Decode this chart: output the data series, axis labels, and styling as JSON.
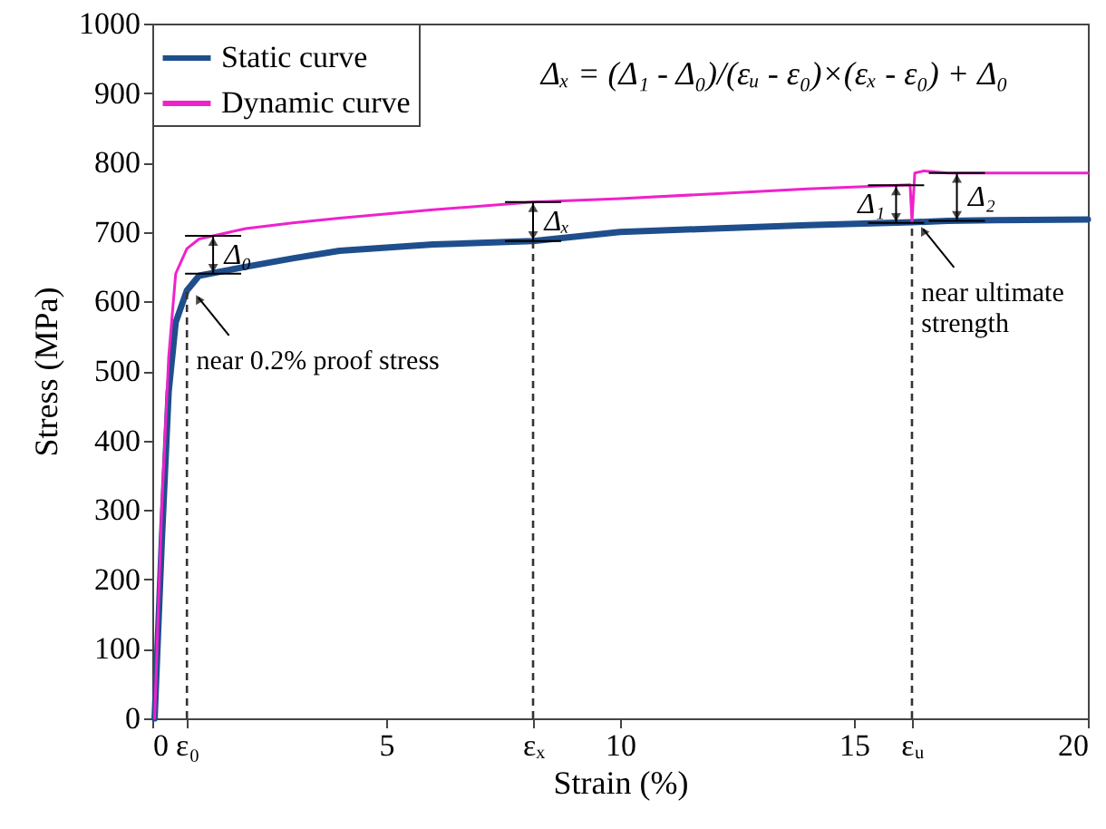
{
  "chart_data": {
    "type": "line",
    "xlabel": "Strain (%)",
    "ylabel": "Stress (MPa)",
    "xlim": [
      0,
      20
    ],
    "ylim": [
      0,
      1000
    ],
    "xticks": [
      0,
      {
        "value": 0.74,
        "label": "ε₀"
      },
      5,
      {
        "value": 8.14,
        "label": "εₓ"
      },
      10,
      15,
      {
        "value": 16.24,
        "label": "εᵤ"
      },
      20
    ],
    "yticks": [
      0,
      100,
      200,
      300,
      400,
      500,
      600,
      700,
      800,
      900,
      1000
    ],
    "legend": "top left",
    "series": [
      {
        "name": "Static curve",
        "color": "#1f4e8c",
        "x": [
          0.05,
          0.2,
          0.35,
          0.5,
          0.74,
          1,
          2,
          3,
          4,
          6,
          8.14,
          10,
          12,
          14,
          16.24,
          17,
          18,
          20
        ],
        "values": [
          0,
          250,
          470,
          570,
          616,
          637,
          650,
          662,
          673,
          682,
          687,
          700,
          705,
          710,
          714,
          716,
          717,
          718
        ]
      },
      {
        "name": "Dynamic curve",
        "color": "#ee22cc",
        "x": [
          0.05,
          0.2,
          0.35,
          0.5,
          0.74,
          1,
          2,
          3,
          4,
          6,
          8.14,
          10,
          12,
          14,
          16.2,
          16.24,
          16.3,
          16.5,
          17,
          18,
          20
        ],
        "values": [
          0,
          300,
          520,
          640,
          676,
          690,
          705,
          713,
          720,
          732,
          743,
          748,
          755,
          762,
          768,
          715,
          785,
          788,
          785,
          785,
          785
        ]
      }
    ],
    "ref_lines": [
      {
        "axis": "x",
        "value": 0.74
      },
      {
        "axis": "x",
        "value": 8.14
      },
      {
        "axis": "x",
        "value": 16.24
      }
    ],
    "annotations": [
      "Δₓ = (Δ₁ - Δ₀)/(εᵤ - ε₀)×(εₓ - ε₀) + Δ₀",
      {
        "text": "near 0.2% proof stress",
        "x": 0.74,
        "y": 616
      },
      {
        "text": "near ultimate\nstrength",
        "x": 16.24,
        "y": 714
      },
      {
        "text": "Δ₀",
        "x": 1.3,
        "y": 640
      },
      {
        "text": "Δₓ",
        "x": 8.14,
        "y": 687
      },
      {
        "text": "Δ₁",
        "x": 15.9,
        "y": 713
      },
      {
        "text": "Δ₂",
        "x": 17.2,
        "y": 716
      }
    ]
  }
}
